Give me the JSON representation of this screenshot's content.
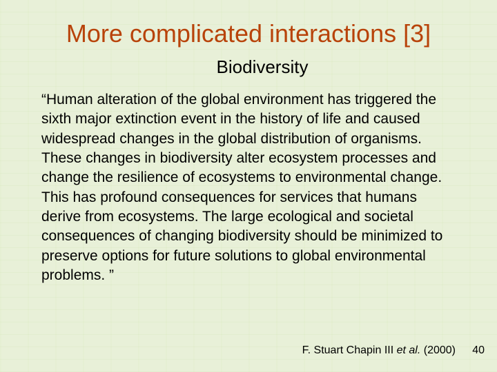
{
  "slide": {
    "title": "More complicated interactions [3]",
    "subtitle": "Biodiversity",
    "body": "“Human alteration of the global environment has triggered the sixth major extinction event in the history of life and caused widespread changes in the global distribution of organisms. These changes in biodiversity alter ecosystem processes and change the resilience of ecosystems to environmental change. This has profound consequences for services that humans derive from ecosystems. The large ecological and societal consequences of changing biodiversity should be minimized to preserve options for future solutions to global environmental problems. ”",
    "citation": {
      "author": "F. Stuart Chapin III",
      "etal": "et al.",
      "year": "(2000)"
    },
    "page_number": "40"
  },
  "colors": {
    "background": "#e8f0d8",
    "title_color": "#b8430a",
    "text_color": "#000000"
  },
  "typography": {
    "title_fontsize": 36,
    "subtitle_fontsize": 26,
    "body_fontsize": 21,
    "citation_fontsize": 16
  }
}
